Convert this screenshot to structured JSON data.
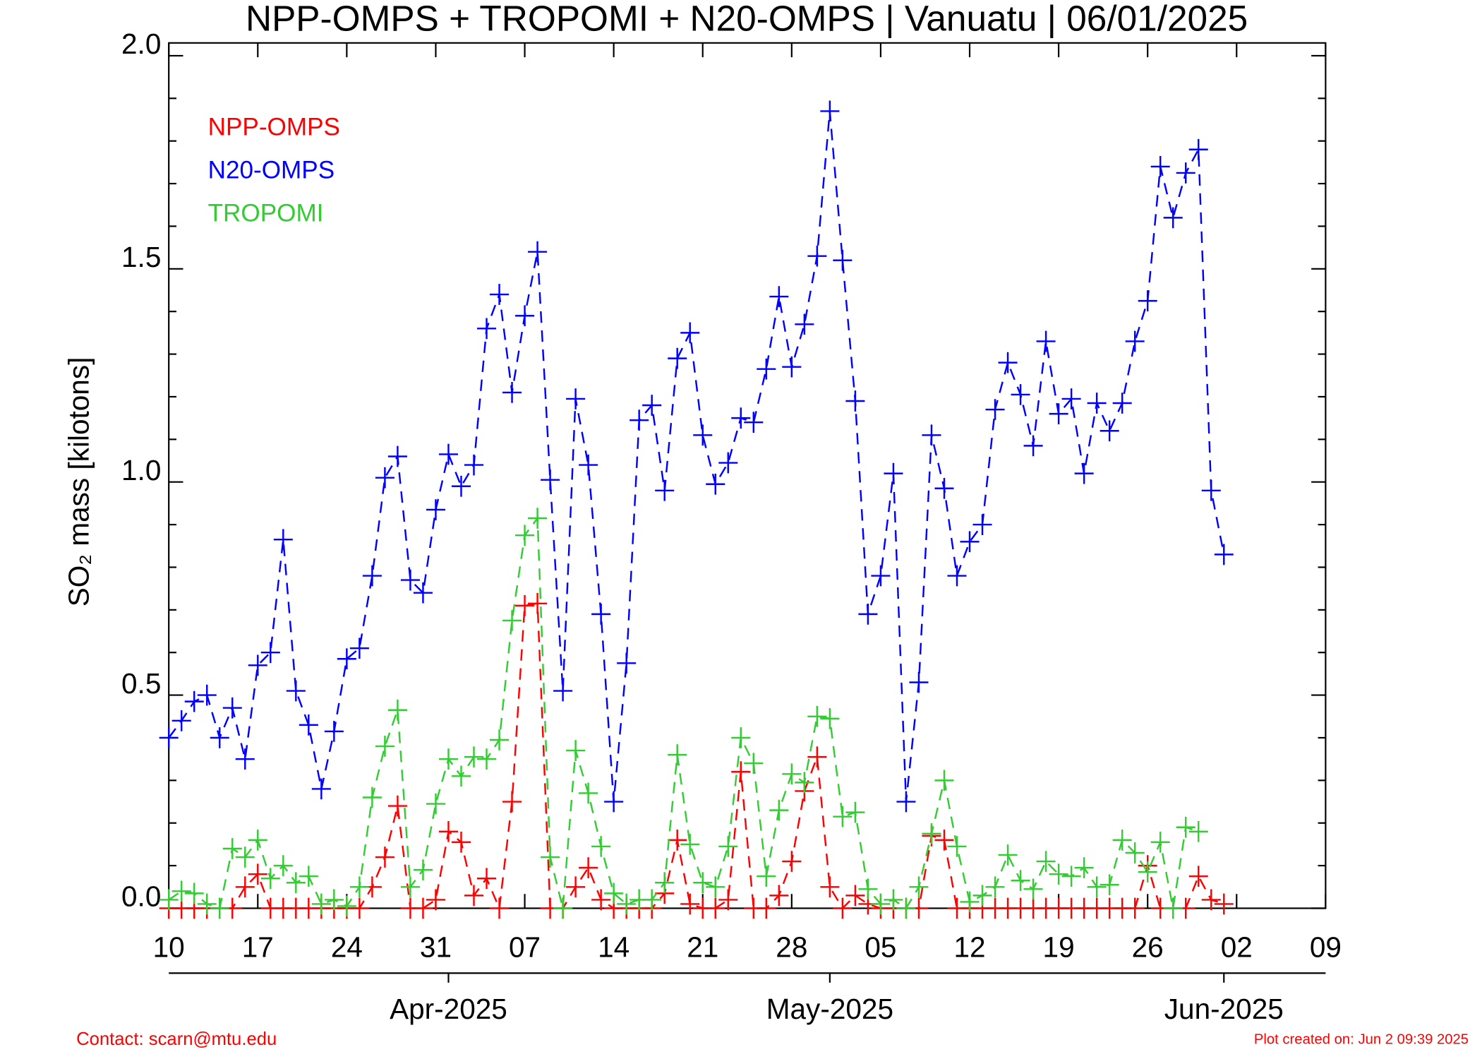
{
  "chart_data": {
    "type": "line",
    "title": "NPP-OMPS + TROPOMI + N20-OMPS | Vanuatu | 06/01/2025",
    "y_label": "SO₂ mass [kilotons]",
    "footer_left": "Contact: scarn@mtu.edu",
    "footer_right": "Plot created on: Jun  2 09:39 2025",
    "legend_position": "upper left",
    "marker": "+",
    "line_style": "dashed",
    "x": [
      "2025-03-10",
      "2025-03-11",
      "2025-03-12",
      "2025-03-13",
      "2025-03-14",
      "2025-03-15",
      "2025-03-16",
      "2025-03-17",
      "2025-03-18",
      "2025-03-19",
      "2025-03-20",
      "2025-03-21",
      "2025-03-22",
      "2025-03-23",
      "2025-03-24",
      "2025-03-25",
      "2025-03-26",
      "2025-03-27",
      "2025-03-28",
      "2025-03-29",
      "2025-03-30",
      "2025-03-31",
      "2025-04-01",
      "2025-04-02",
      "2025-04-03",
      "2025-04-04",
      "2025-04-05",
      "2025-04-06",
      "2025-04-07",
      "2025-04-08",
      "2025-04-09",
      "2025-04-10",
      "2025-04-11",
      "2025-04-12",
      "2025-04-13",
      "2025-04-14",
      "2025-04-15",
      "2025-04-16",
      "2025-04-17",
      "2025-04-18",
      "2025-04-19",
      "2025-04-20",
      "2025-04-21",
      "2025-04-22",
      "2025-04-23",
      "2025-04-24",
      "2025-04-25",
      "2025-04-26",
      "2025-04-27",
      "2025-04-28",
      "2025-04-29",
      "2025-04-30",
      "2025-05-01",
      "2025-05-02",
      "2025-05-03",
      "2025-05-04",
      "2025-05-05",
      "2025-05-06",
      "2025-05-07",
      "2025-05-08",
      "2025-05-09",
      "2025-05-10",
      "2025-05-11",
      "2025-05-12",
      "2025-05-13",
      "2025-05-14",
      "2025-05-15",
      "2025-05-16",
      "2025-05-17",
      "2025-05-18",
      "2025-05-19",
      "2025-05-20",
      "2025-05-21",
      "2025-05-22",
      "2025-05-23",
      "2025-05-24",
      "2025-05-25",
      "2025-05-26",
      "2025-05-27",
      "2025-05-28",
      "2025-05-29",
      "2025-05-30",
      "2025-05-31",
      "2025-06-01"
    ],
    "series": [
      {
        "name": "NPP-OMPS",
        "color": "#ff0000",
        "values": [
          0,
          0,
          0,
          0,
          0,
          0,
          0.05,
          0.08,
          0,
          0,
          0,
          0,
          0,
          0,
          0,
          0,
          0.05,
          0.12,
          0.24,
          0,
          0,
          0.02,
          0.18,
          0.155,
          0.03,
          0.07,
          0,
          0.25,
          0.71,
          0.715,
          0,
          0,
          0.05,
          0.095,
          0.02,
          0,
          0,
          0,
          0,
          0.035,
          0.16,
          0.01,
          0,
          0,
          0.02,
          0.32,
          0,
          0,
          0.03,
          0.11,
          0.275,
          0.355,
          0.05,
          0,
          0.03,
          0.01,
          0,
          0,
          0,
          0,
          0.17,
          0.16,
          0,
          0,
          0,
          0,
          0,
          0,
          0,
          0,
          0,
          0,
          0,
          0,
          0,
          0,
          0,
          0.1,
          0,
          0,
          0,
          0.075,
          0.02,
          0.01
        ]
      },
      {
        "name": "N20-OMPS",
        "color": "#0000ff",
        "values": [
          0.4,
          0.44,
          0.485,
          0.5,
          0.4,
          0.47,
          0.35,
          0.57,
          0.6,
          0.865,
          0.51,
          0.43,
          0.28,
          0.415,
          0.585,
          0.61,
          0.78,
          1.01,
          1.06,
          0.77,
          0.74,
          0.935,
          1.065,
          0.99,
          1.04,
          1.36,
          1.44,
          1.21,
          1.39,
          1.54,
          1.005,
          0.51,
          1.195,
          1.04,
          0.69,
          0.25,
          0.575,
          1.145,
          1.18,
          0.98,
          1.29,
          1.35,
          1.11,
          0.995,
          1.045,
          1.15,
          1.14,
          1.265,
          1.435,
          1.27,
          1.37,
          1.53,
          1.87,
          1.52,
          1.19,
          0.69,
          0.78,
          1.02,
          0.25,
          0.53,
          1.11,
          0.985,
          0.78,
          0.86,
          0.9,
          1.17,
          1.28,
          1.205,
          1.085,
          1.33,
          1.16,
          1.195,
          1.02,
          1.185,
          1.12,
          1.185,
          1.33,
          1.425,
          1.74,
          1.62,
          1.725,
          1.78,
          0.98,
          0.83
        ]
      },
      {
        "name": "TROPOMI",
        "color": "#33cc33",
        "values": [
          0.02,
          0.04,
          0.035,
          0.01,
          0,
          0.14,
          0.12,
          0.16,
          0.07,
          0.1,
          0.06,
          0.075,
          0.01,
          0.02,
          0.005,
          0.05,
          0.26,
          0.38,
          0.465,
          0.05,
          0.09,
          0.245,
          0.35,
          0.31,
          0.355,
          0.35,
          0.395,
          0.675,
          0.875,
          0.915,
          0.12,
          0,
          0.37,
          0.27,
          0.145,
          0.035,
          0.01,
          0.02,
          0.02,
          0.06,
          0.36,
          0.15,
          0.06,
          0.05,
          0.145,
          0.4,
          0.34,
          0.075,
          0.23,
          0.315,
          0.295,
          0.45,
          0.445,
          0.215,
          0.225,
          0.045,
          0.01,
          0.02,
          0,
          0.05,
          0.175,
          0.3,
          0.145,
          0.015,
          0.03,
          0.05,
          0.125,
          0.065,
          0.045,
          0.11,
          0.08,
          0.075,
          0.095,
          0.05,
          0.055,
          0.16,
          0.13,
          0.085,
          0.155,
          0,
          0.19,
          0.18,
          null,
          null
        ]
      }
    ],
    "xlim": [
      "2025-03-10",
      "2025-06-09"
    ],
    "xticks": [
      {
        "value": "2025-03-10",
        "label": "10"
      },
      {
        "value": "2025-03-17",
        "label": "17"
      },
      {
        "value": "2025-03-24",
        "label": "24"
      },
      {
        "value": "2025-03-31",
        "label": "31"
      },
      {
        "value": "2025-04-07",
        "label": "07"
      },
      {
        "value": "2025-04-14",
        "label": "14"
      },
      {
        "value": "2025-04-21",
        "label": "21"
      },
      {
        "value": "2025-04-28",
        "label": "28"
      },
      {
        "value": "2025-05-05",
        "label": "05"
      },
      {
        "value": "2025-05-12",
        "label": "12"
      },
      {
        "value": "2025-05-19",
        "label": "19"
      },
      {
        "value": "2025-05-26",
        "label": "26"
      },
      {
        "value": "2025-06-02",
        "label": "02"
      },
      {
        "value": "2025-06-09",
        "label": "09"
      }
    ],
    "month_ticks": [
      {
        "value": "2025-04-01",
        "label": "Apr-2025"
      },
      {
        "value": "2025-05-01",
        "label": "May-2025"
      },
      {
        "value": "2025-06-01",
        "label": "Jun-2025"
      }
    ],
    "ylim": [
      0,
      2.03
    ],
    "yticks": [
      {
        "value": 0,
        "label": "0.0"
      },
      {
        "value": 0.5,
        "label": "0.5"
      },
      {
        "value": 1,
        "label": "1.0"
      },
      {
        "value": 1.5,
        "label": "1.5"
      },
      {
        "value": 2,
        "label": "2.0"
      }
    ],
    "yminorticks": [
      0.1,
      0.2,
      0.3,
      0.4,
      0.6,
      0.7,
      0.8,
      0.9,
      1.1,
      1.2,
      1.3,
      1.4,
      1.6,
      1.7,
      1.8,
      1.9
    ]
  }
}
